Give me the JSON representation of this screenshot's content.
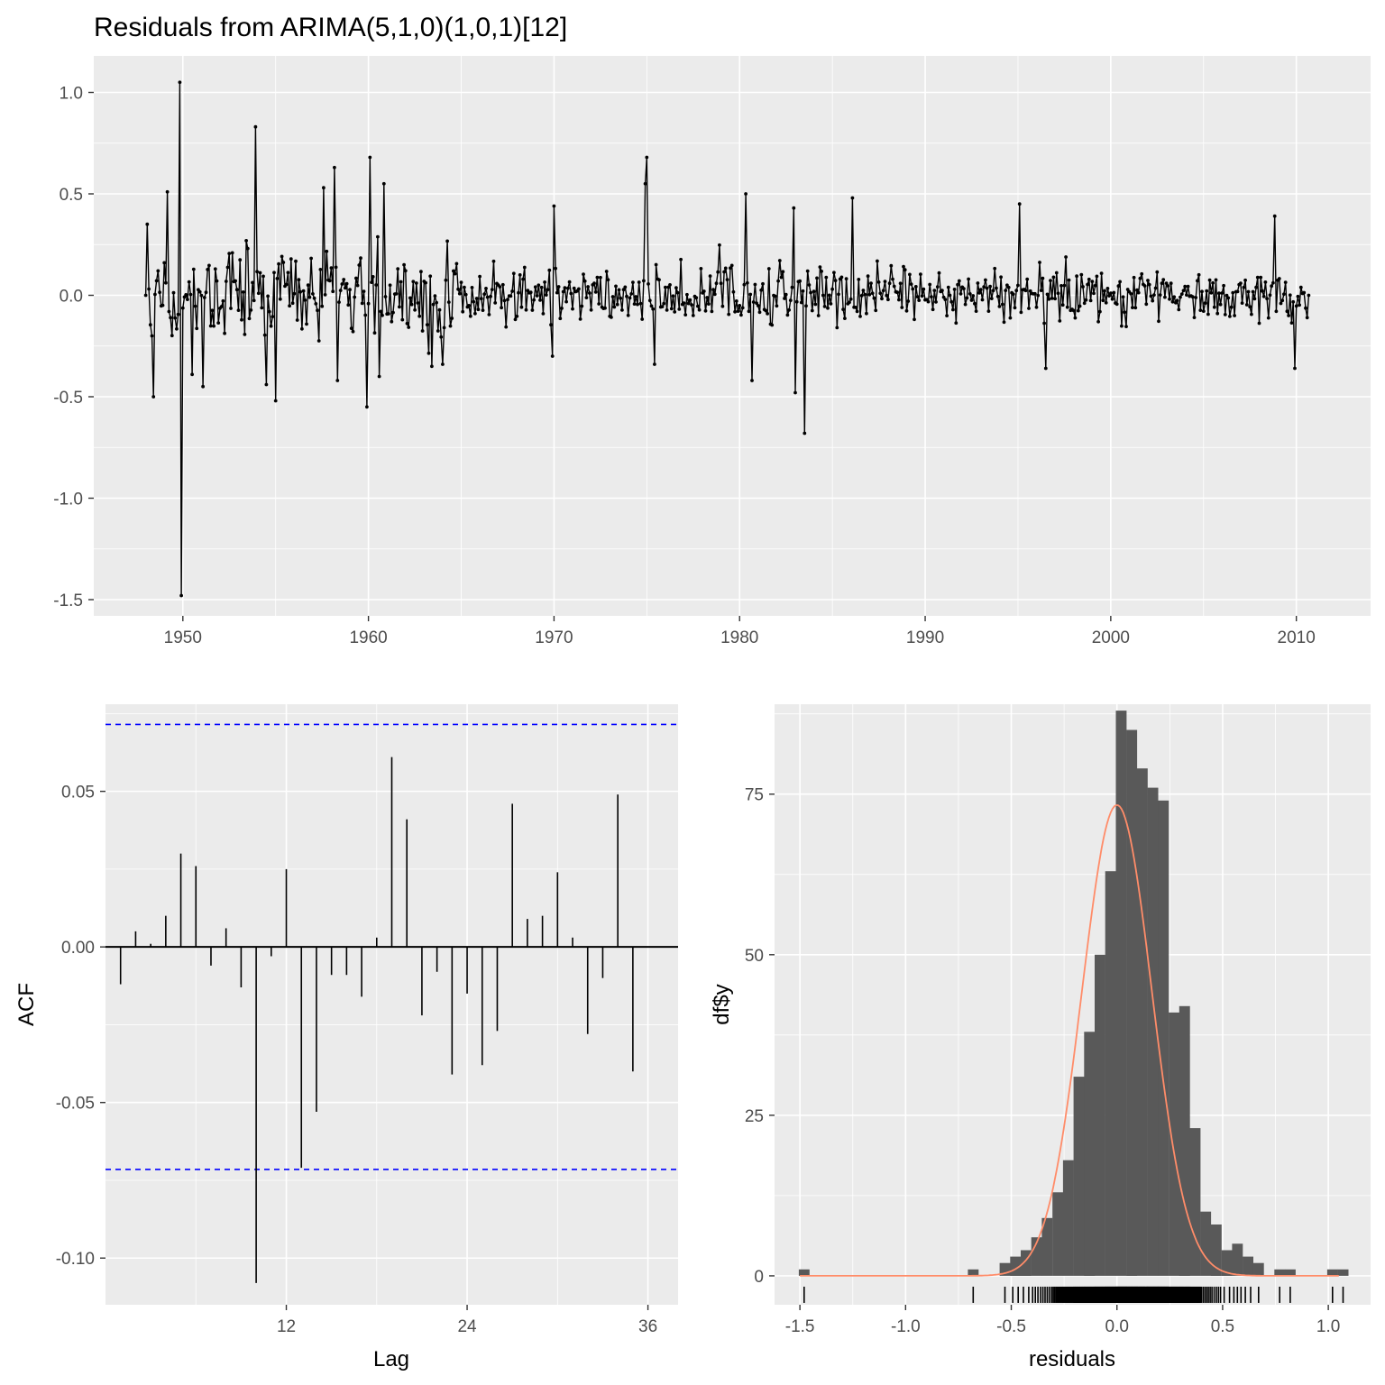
{
  "chart_data": [
    {
      "type": "line",
      "title": "Residuals from ARIMA(5,1,0)(1,0,1)[12]",
      "xlabel": "",
      "ylabel": "",
      "xlim": [
        1945.2,
        2014.0
      ],
      "ylim": [
        -1.58,
        1.18
      ],
      "x_ticks": [
        1950,
        1960,
        1970,
        1980,
        1990,
        2000,
        2010
      ],
      "x_tick_labels": [
        "1950",
        "1960",
        "1970",
        "1980",
        "1990",
        "2000",
        "2010"
      ],
      "y_ticks": [
        1.0,
        0.5,
        0.0,
        -0.5,
        -1.0,
        -1.5
      ],
      "y_tick_labels": [
        "1.0",
        "0.5",
        "0.0",
        "-0.5",
        "-1.0",
        "-1.5"
      ],
      "x_start": 1948.0,
      "x_step": 0.083333,
      "seed": 20240311,
      "n_points": 753,
      "fixed_points": [
        {
          "x": 1948.0,
          "y": 0.0
        },
        {
          "x": 1948.1,
          "y": 0.35
        },
        {
          "x": 1948.3,
          "y": -0.2
        },
        {
          "x": 1948.4,
          "y": -0.5
        },
        {
          "x": 1949.2,
          "y": 0.51
        },
        {
          "x": 1949.8,
          "y": 1.05
        },
        {
          "x": 1949.9,
          "y": -1.48
        },
        {
          "x": 1950.5,
          "y": -0.39
        },
        {
          "x": 1951.1,
          "y": -0.45
        },
        {
          "x": 1953.9,
          "y": 0.83
        },
        {
          "x": 1954.5,
          "y": -0.44
        },
        {
          "x": 1955.0,
          "y": -0.52
        },
        {
          "x": 1957.6,
          "y": 0.53
        },
        {
          "x": 1958.2,
          "y": 0.63
        },
        {
          "x": 1958.3,
          "y": -0.42
        },
        {
          "x": 1959.9,
          "y": -0.55
        },
        {
          "x": 1960.1,
          "y": 0.68
        },
        {
          "x": 1960.6,
          "y": -0.4
        },
        {
          "x": 1960.8,
          "y": 0.55
        },
        {
          "x": 1963.4,
          "y": -0.35
        },
        {
          "x": 1964.0,
          "y": -0.34
        },
        {
          "x": 1969.9,
          "y": -0.3
        },
        {
          "x": 1970.0,
          "y": 0.44
        },
        {
          "x": 1974.9,
          "y": 0.55
        },
        {
          "x": 1975.0,
          "y": 0.68
        },
        {
          "x": 1975.4,
          "y": -0.34
        },
        {
          "x": 1980.3,
          "y": 0.5
        },
        {
          "x": 1980.7,
          "y": -0.42
        },
        {
          "x": 1982.9,
          "y": 0.43
        },
        {
          "x": 1983.0,
          "y": -0.48
        },
        {
          "x": 1983.5,
          "y": -0.68
        },
        {
          "x": 1986.1,
          "y": 0.48
        },
        {
          "x": 1995.1,
          "y": 0.45
        },
        {
          "x": 1996.5,
          "y": -0.36
        },
        {
          "x": 2008.8,
          "y": 0.39
        },
        {
          "x": 2009.9,
          "y": -0.36
        },
        {
          "x": 2010.7,
          "y": 0.0
        }
      ]
    },
    {
      "type": "bar",
      "title": "",
      "xlabel": "Lag",
      "ylabel": "ACF",
      "xlim": [
        0,
        38
      ],
      "ylim": [
        -0.115,
        0.078
      ],
      "x_ticks": [
        12,
        24,
        36
      ],
      "x_tick_labels": [
        "12",
        "24",
        "36"
      ],
      "y_ticks": [
        0.05,
        0.0,
        -0.05,
        -0.1
      ],
      "y_tick_labels": [
        "0.05",
        "0.00",
        "-0.05",
        "-0.10"
      ],
      "ci_bound": 0.0715,
      "lags": [
        1,
        2,
        3,
        4,
        5,
        6,
        7,
        8,
        9,
        10,
        11,
        12,
        13,
        14,
        15,
        16,
        17,
        18,
        19,
        20,
        21,
        22,
        23,
        24,
        25,
        26,
        27,
        28,
        29,
        30,
        31,
        32,
        33,
        34,
        35
      ],
      "values": [
        -0.012,
        0.005,
        0.001,
        0.01,
        0.03,
        0.026,
        -0.006,
        0.006,
        -0.013,
        -0.108,
        -0.003,
        0.025,
        -0.071,
        -0.053,
        -0.009,
        -0.009,
        -0.016,
        0.003,
        0.061,
        0.041,
        -0.022,
        -0.008,
        -0.041,
        -0.015,
        -0.038,
        -0.027,
        0.046,
        0.009,
        0.01,
        0.024,
        0.003,
        -0.028,
        -0.01,
        0.049,
        -0.04
      ],
      "colors": {
        "ci_line": "#0000ff",
        "bar": "#000000"
      }
    },
    {
      "type": "bar",
      "title": "",
      "xlabel": "residuals",
      "ylabel": "df$y",
      "xlim": [
        -1.62,
        1.2
      ],
      "ylim": [
        -4.5,
        89
      ],
      "x_ticks": [
        -1.5,
        -1.0,
        -0.5,
        0.0,
        0.5,
        1.0
      ],
      "x_tick_labels": [
        "-1.5",
        "-1.0",
        "-0.5",
        "0.0",
        "0.5",
        "1.0"
      ],
      "y_ticks": [
        75,
        50,
        25,
        0
      ],
      "y_tick_labels": [
        "75",
        "50",
        "25",
        "0"
      ],
      "bin_width": 0.0507,
      "bins": [
        {
          "x": -1.48,
          "count": 1
        },
        {
          "x": -0.68,
          "count": 1
        },
        {
          "x": -0.53,
          "count": 2
        },
        {
          "x": -0.48,
          "count": 3
        },
        {
          "x": -0.43,
          "count": 4
        },
        {
          "x": -0.38,
          "count": 6
        },
        {
          "x": -0.33,
          "count": 9
        },
        {
          "x": -0.28,
          "count": 13
        },
        {
          "x": -0.23,
          "count": 18
        },
        {
          "x": -0.18,
          "count": 31
        },
        {
          "x": -0.13,
          "count": 38
        },
        {
          "x": -0.08,
          "count": 50
        },
        {
          "x": -0.03,
          "count": 63
        },
        {
          "x": 0.02,
          "count": 88
        },
        {
          "x": 0.07,
          "count": 85
        },
        {
          "x": 0.12,
          "count": 79
        },
        {
          "x": 0.17,
          "count": 76
        },
        {
          "x": 0.22,
          "count": 74
        },
        {
          "x": 0.27,
          "count": 41
        },
        {
          "x": 0.32,
          "count": 42
        },
        {
          "x": 0.37,
          "count": 23
        },
        {
          "x": 0.42,
          "count": 10
        },
        {
          "x": 0.47,
          "count": 8
        },
        {
          "x": 0.52,
          "count": 4
        },
        {
          "x": 0.57,
          "count": 5
        },
        {
          "x": 0.62,
          "count": 3
        },
        {
          "x": 0.67,
          "count": 2
        },
        {
          "x": 0.77,
          "count": 1
        },
        {
          "x": 0.82,
          "count": 1
        },
        {
          "x": 1.02,
          "count": 1
        },
        {
          "x": 1.07,
          "count": 1
        }
      ],
      "density_peak": 73.3,
      "density_mean": 0.0,
      "density_sd": 0.165,
      "colors": {
        "bar": "#595959",
        "density": "#ff8c69",
        "rug": "#000000"
      }
    }
  ]
}
